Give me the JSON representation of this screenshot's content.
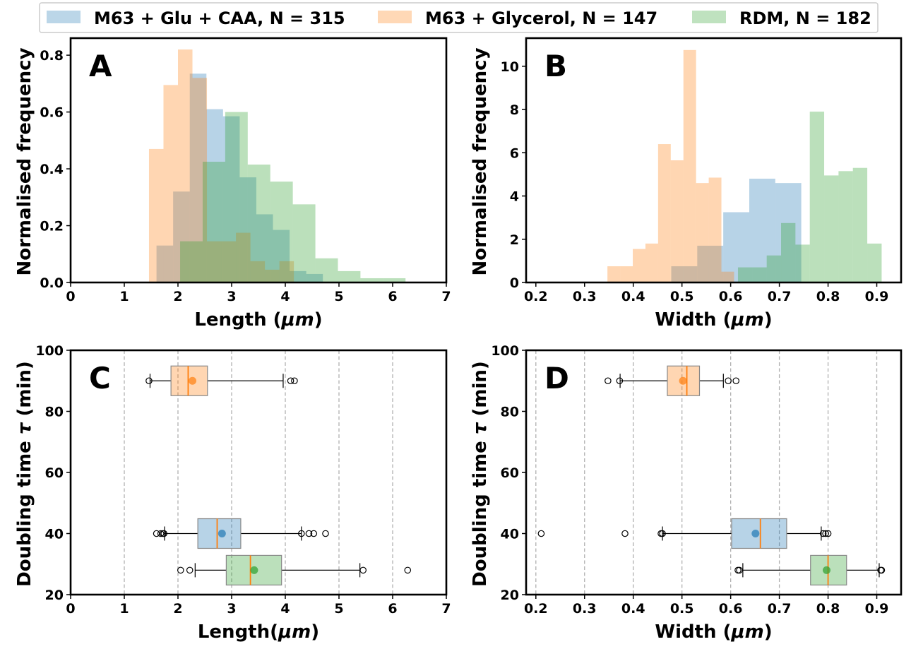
{
  "legend": [
    {
      "label": "M63 + Glu + CAA, N = 315",
      "color": "#1f77b4"
    },
    {
      "label": "M63 + Glycerol, N = 147",
      "color": "#ff7f0e"
    },
    {
      "label": "RDM, N = 182",
      "color": "#2ca02c"
    }
  ],
  "colors": {
    "blue": "#1f77b4",
    "orange": "#ff7f0e",
    "green": "#2ca02c",
    "median": "#ff7f0e"
  },
  "chart_data": [
    {
      "panel": "A",
      "type": "bar",
      "subtype": "histogram",
      "xlabel": "Length ($\\mu m$)",
      "ylabel": "Normalised frequency",
      "xlim": [
        0,
        7
      ],
      "ylim": [
        0,
        0.86
      ],
      "xticks": [
        "0",
        "1",
        "2",
        "3",
        "4",
        "5",
        "6",
        "7"
      ],
      "yticks": [
        "0.0",
        "0.2",
        "0.4",
        "0.6",
        "0.8"
      ],
      "series": [
        {
          "name": "M63 + Glu + CAA, N = 315",
          "color": "#1f77b4",
          "edges": [
            1.6,
            1.91,
            2.22,
            2.53,
            2.84,
            3.15,
            3.46,
            3.77,
            4.08,
            4.39,
            4.7
          ],
          "values": [
            0.13,
            0.32,
            0.735,
            0.61,
            0.585,
            0.37,
            0.24,
            0.185,
            0.04,
            0.03
          ]
        },
        {
          "name": "M63 + Glycerol, N = 147",
          "color": "#ff7f0e",
          "edges": [
            1.46,
            1.73,
            2.0,
            2.27,
            2.54,
            2.81,
            3.08,
            3.35,
            3.62,
            3.89,
            4.16
          ],
          "values": [
            0.47,
            0.695,
            0.82,
            0.72,
            0.145,
            0.145,
            0.175,
            0.075,
            0.045,
            0.075
          ]
        },
        {
          "name": "RDM, N = 182",
          "color": "#2ca02c",
          "edges": [
            2.04,
            2.46,
            2.88,
            3.3,
            3.72,
            4.14,
            4.56,
            4.98,
            5.4,
            5.82,
            6.24
          ],
          "values": [
            0.145,
            0.425,
            0.6,
            0.415,
            0.355,
            0.275,
            0.085,
            0.04,
            0.015,
            0.015
          ]
        }
      ]
    },
    {
      "panel": "B",
      "type": "bar",
      "subtype": "histogram",
      "xlabel": "Width ($\\mu m$)",
      "ylabel": "Normalised frequency",
      "xlim": [
        0.18,
        0.95
      ],
      "ylim": [
        0,
        11.3
      ],
      "xticks": [
        "0.2",
        "0.3",
        "0.4",
        "0.5",
        "0.6",
        "0.7",
        "0.8",
        "0.9"
      ],
      "yticks": [
        "0",
        "2",
        "4",
        "6",
        "8",
        "10"
      ],
      "series": [
        {
          "name": "M63 + Glu + CAA, N = 315",
          "color": "#1f77b4",
          "edges": [
            0.211,
            0.2644,
            0.3178,
            0.3712,
            0.4246,
            0.478,
            0.5314,
            0.5848,
            0.6382,
            0.6916,
            0.745
          ],
          "values": [
            0.02,
            0,
            0,
            0.02,
            0.02,
            0.75,
            1.7,
            3.25,
            4.8,
            4.6
          ]
        },
        {
          "name": "M63 + Glycerol, N = 147",
          "color": "#ff7f0e",
          "edges": [
            0.347,
            0.373,
            0.399,
            0.425,
            0.451,
            0.477,
            0.503,
            0.529,
            0.555,
            0.581,
            0.607
          ],
          "values": [
            0.75,
            0.75,
            1.55,
            1.8,
            6.4,
            5.65,
            10.75,
            4.6,
            4.85,
            0.5
          ]
        },
        {
          "name": "RDM, N = 182",
          "color": "#2ca02c",
          "edges": [
            0.615,
            0.6445,
            0.674,
            0.7035,
            0.733,
            0.7625,
            0.792,
            0.8215,
            0.851,
            0.8805,
            0.91
          ],
          "values": [
            0.7,
            0.7,
            1.25,
            2.75,
            1.75,
            7.9,
            4.95,
            5.15,
            5.3,
            1.8
          ]
        }
      ]
    },
    {
      "panel": "C",
      "type": "box",
      "xlabel": "Length($\\mu m$)",
      "ylabel": "Doubling time $\\tau$ (min)",
      "xlim": [
        0,
        7
      ],
      "ylim": [
        20,
        100
      ],
      "xticks": [
        "0",
        "1",
        "2",
        "3",
        "4",
        "5",
        "6",
        "7"
      ],
      "yticks": [
        "20",
        "40",
        "60",
        "80",
        "100"
      ],
      "grid_x": true,
      "boxes": [
        {
          "name": "M63 + Glycerol, N = 147",
          "color": "#ff7f0e",
          "position": 90,
          "whislo": 1.48,
          "q1": 1.87,
          "med": 2.19,
          "q3": 2.55,
          "whishi": 3.96,
          "mean": 2.27,
          "fliers": [
            1.46,
            4.1,
            4.17
          ]
        },
        {
          "name": "M63 + Glu + CAA, N = 315",
          "color": "#1f77b4",
          "position": 40,
          "whislo": 1.75,
          "q1": 2.37,
          "med": 2.73,
          "q3": 3.17,
          "whishi": 4.3,
          "mean": 2.82,
          "fliers": [
            1.6,
            1.68,
            1.72,
            1.74,
            4.3,
            4.44,
            4.53,
            4.75
          ]
        },
        {
          "name": "RDM, N = 182",
          "color": "#2ca02c",
          "position": 28,
          "whislo": 2.32,
          "q1": 2.9,
          "med": 3.35,
          "q3": 3.93,
          "whishi": 5.39,
          "mean": 3.42,
          "fliers": [
            2.05,
            2.22,
            5.45,
            6.28
          ]
        }
      ]
    },
    {
      "panel": "D",
      "type": "box",
      "xlabel": "Width ($\\mu m$)",
      "ylabel": "Doubling time $\\tau$ (min)",
      "xlim": [
        0.18,
        0.95
      ],
      "ylim": [
        20,
        100
      ],
      "xticks": [
        "0.2",
        "0.3",
        "0.4",
        "0.5",
        "0.6",
        "0.7",
        "0.8",
        "0.9"
      ],
      "yticks": [
        "20",
        "40",
        "60",
        "80",
        "100"
      ],
      "grid_x": true,
      "boxes": [
        {
          "name": "M63 + Glycerol, N = 147",
          "color": "#ff7f0e",
          "position": 90,
          "whislo": 0.373,
          "q1": 0.47,
          "med": 0.51,
          "q3": 0.536,
          "whishi": 0.585,
          "mean": 0.502,
          "fliers": [
            0.348,
            0.372,
            0.595,
            0.611
          ]
        },
        {
          "name": "M63 + Glu + CAA, N = 315",
          "color": "#1f77b4",
          "position": 40,
          "whislo": 0.46,
          "q1": 0.602,
          "med": 0.661,
          "q3": 0.715,
          "whishi": 0.786,
          "mean": 0.651,
          "fliers": [
            0.211,
            0.383,
            0.457,
            0.46,
            0.79,
            0.795,
            0.8
          ]
        },
        {
          "name": "RDM, N = 182",
          "color": "#2ca02c",
          "position": 28,
          "whislo": 0.625,
          "q1": 0.764,
          "med": 0.8,
          "q3": 0.838,
          "whishi": 0.905,
          "mean": 0.797,
          "fliers": [
            0.615,
            0.618,
            0.908,
            0.91
          ]
        }
      ]
    }
  ]
}
